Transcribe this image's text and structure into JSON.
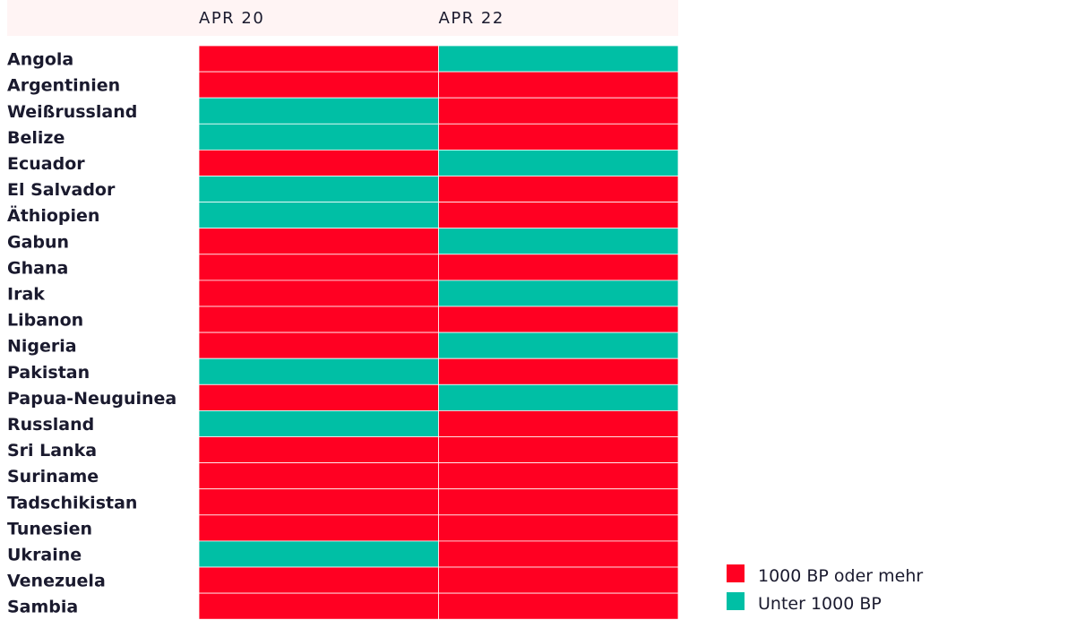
{
  "colors": {
    "high": "#ff0022",
    "low": "#00bfa5",
    "header_bg": "#fff4f4"
  },
  "chart_data": {
    "type": "heatmap",
    "columns": [
      "APR 20",
      "APR 22"
    ],
    "rows": [
      {
        "country": "Angola",
        "values": [
          "high",
          "low"
        ]
      },
      {
        "country": "Argentinien",
        "values": [
          "high",
          "high"
        ]
      },
      {
        "country": "Weißrussland",
        "values": [
          "low",
          "high"
        ]
      },
      {
        "country": "Belize",
        "values": [
          "low",
          "high"
        ]
      },
      {
        "country": "Ecuador",
        "values": [
          "high",
          "low"
        ]
      },
      {
        "country": "El Salvador",
        "values": [
          "low",
          "high"
        ]
      },
      {
        "country": "Äthiopien",
        "values": [
          "low",
          "high"
        ]
      },
      {
        "country": "Gabun",
        "values": [
          "high",
          "low"
        ]
      },
      {
        "country": "Ghana",
        "values": [
          "high",
          "high"
        ]
      },
      {
        "country": "Irak",
        "values": [
          "high",
          "low"
        ]
      },
      {
        "country": "Libanon",
        "values": [
          "high",
          "high"
        ]
      },
      {
        "country": "Nigeria",
        "values": [
          "high",
          "low"
        ]
      },
      {
        "country": "Pakistan",
        "values": [
          "low",
          "high"
        ]
      },
      {
        "country": "Papua-Neuguinea",
        "values": [
          "high",
          "low"
        ]
      },
      {
        "country": "Russland",
        "values": [
          "low",
          "high"
        ]
      },
      {
        "country": "Sri Lanka",
        "values": [
          "high",
          "high"
        ]
      },
      {
        "country": "Suriname",
        "values": [
          "high",
          "high"
        ]
      },
      {
        "country": "Tadschikistan",
        "values": [
          "high",
          "high"
        ]
      },
      {
        "country": "Tunesien",
        "values": [
          "high",
          "high"
        ]
      },
      {
        "country": "Ukraine",
        "values": [
          "low",
          "high"
        ]
      },
      {
        "country": "Venezuela",
        "values": [
          "high",
          "high"
        ]
      },
      {
        "country": "Sambia",
        "values": [
          "high",
          "high"
        ]
      }
    ],
    "legend": [
      {
        "key": "high",
        "label": "1000 BP oder mehr"
      },
      {
        "key": "low",
        "label": "Unter 1000 BP"
      }
    ],
    "legend_position": "bottom-right"
  }
}
